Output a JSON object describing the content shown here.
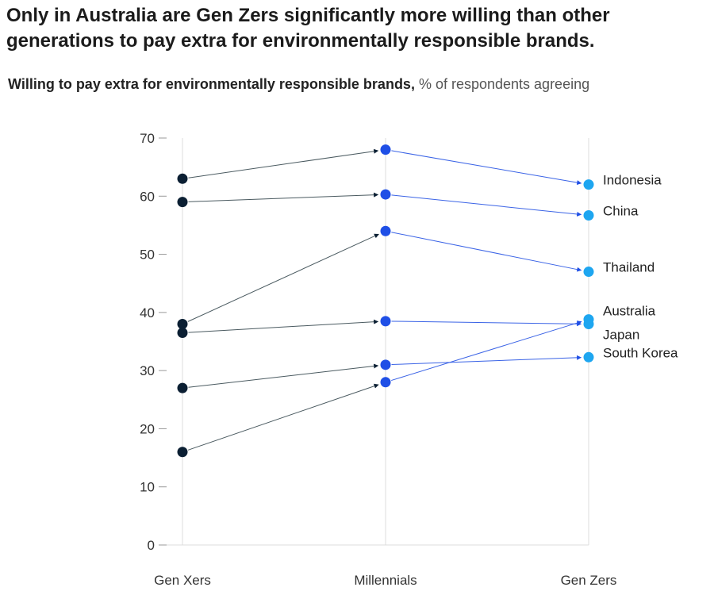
{
  "title": "Only in Australia are Gen Zers significantly more willing than other generations to pay extra for environmentally responsible brands.",
  "subtitle_bold": "Willing to pay extra for environmentally responsible brands,",
  "subtitle_light": " % of respondents agreeing",
  "colors": {
    "gen_x": "#0b1f33",
    "millennials": "#1f4fe6",
    "gen_z": "#1ea6f0",
    "arrow_dark": "#4a5a60",
    "arrow_blue": "#3a63e6",
    "grid": "#dcdcdc"
  },
  "chart_data": {
    "type": "slope",
    "categories": [
      "Gen Xers",
      "Millennials",
      "Gen Zers"
    ],
    "ylim": [
      0,
      70
    ],
    "yticks": [
      0,
      10,
      20,
      30,
      40,
      50,
      60,
      70
    ],
    "series": [
      {
        "name": "Indonesia",
        "values": [
          63,
          68,
          62
        ]
      },
      {
        "name": "China",
        "values": [
          59,
          60.3,
          56.7
        ]
      },
      {
        "name": "Thailand",
        "values": [
          38,
          54,
          47
        ]
      },
      {
        "name": "Australia",
        "values": [
          16,
          28,
          38.8
        ]
      },
      {
        "name": "Japan",
        "values": [
          36.5,
          38.5,
          38
        ]
      },
      {
        "name": "South Korea",
        "values": [
          27,
          31,
          32.3
        ]
      }
    ]
  }
}
